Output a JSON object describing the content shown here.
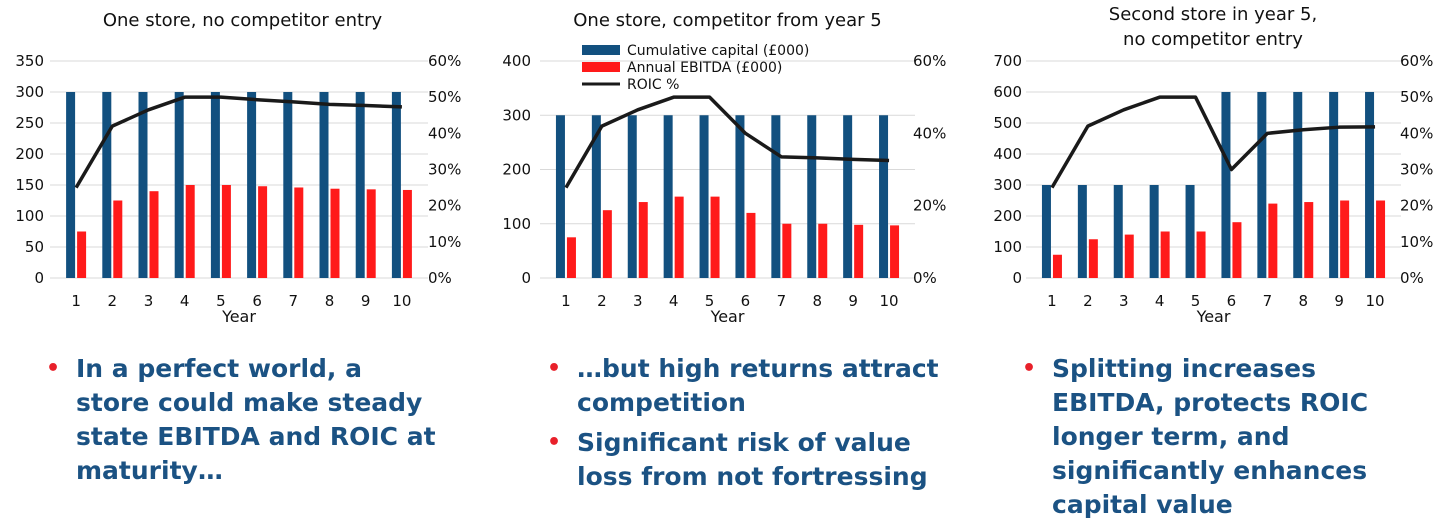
{
  "colors": {
    "capital": "#12507f",
    "ebitda": "#ff1a1a",
    "roic": "#1a1a1a",
    "grid": "#d9d9d9",
    "text_blue": "#1b5283",
    "bullet_red": "#e8202a"
  },
  "legend": {
    "capital": "Cumulative capital (£000)",
    "ebitda": "Annual EBITDA (£000)",
    "roic": "ROIC %"
  },
  "chart_data": [
    {
      "type": "bar",
      "title": [
        "One store, no competitor entry"
      ],
      "xlabel": "Year",
      "categories": [
        "1",
        "2",
        "3",
        "4",
        "5",
        "6",
        "7",
        "8",
        "9",
        "10"
      ],
      "ylim": [
        0,
        350
      ],
      "yticks": [
        "350",
        "300",
        "250",
        "200",
        "150",
        "100",
        "50",
        "0"
      ],
      "y2lim": [
        0,
        0.6
      ],
      "y2ticks": [
        "60%",
        "50%",
        "40%",
        "30%",
        "20%",
        "10%",
        "0%"
      ],
      "series": [
        {
          "name": "Cumulative capital (£000)",
          "axis": "left",
          "kind": "bar",
          "values": [
            300,
            300,
            300,
            300,
            300,
            300,
            300,
            300,
            300,
            300
          ]
        },
        {
          "name": "Annual EBITDA (£000)",
          "axis": "left",
          "kind": "bar",
          "values": [
            75,
            125,
            140,
            150,
            150,
            148,
            146,
            144,
            143,
            142
          ]
        },
        {
          "name": "ROIC %",
          "axis": "right",
          "kind": "line",
          "values": [
            0.25,
            0.42,
            0.465,
            0.5,
            0.5,
            0.493,
            0.487,
            0.48,
            0.477,
            0.473
          ]
        }
      ]
    },
    {
      "type": "bar",
      "title": [
        "One store, competitor from year 5"
      ],
      "xlabel": "Year",
      "categories": [
        "1",
        "2",
        "3",
        "4",
        "5",
        "6",
        "7",
        "8",
        "9",
        "10"
      ],
      "ylim": [
        0,
        400
      ],
      "yticks": [
        "400",
        "300",
        "200",
        "100",
        "0"
      ],
      "y2lim": [
        0,
        0.6
      ],
      "y2ticks": [
        "60%",
        "40%",
        "20%",
        "0%"
      ],
      "legend": "top-left",
      "series": [
        {
          "name": "Cumulative capital (£000)",
          "axis": "left",
          "kind": "bar",
          "values": [
            300,
            300,
            300,
            300,
            300,
            300,
            300,
            300,
            300,
            300
          ]
        },
        {
          "name": "Annual EBITDA (£000)",
          "axis": "left",
          "kind": "bar",
          "values": [
            75,
            125,
            140,
            150,
            150,
            120,
            100,
            100,
            98,
            97
          ]
        },
        {
          "name": "ROIC %",
          "axis": "right",
          "kind": "line",
          "values": [
            0.25,
            0.42,
            0.465,
            0.5,
            0.5,
            0.4,
            0.335,
            0.332,
            0.328,
            0.325
          ]
        }
      ]
    },
    {
      "type": "bar",
      "title": [
        "Second store in year 5,",
        "no competitor entry"
      ],
      "xlabel": "Year",
      "categories": [
        "1",
        "2",
        "3",
        "4",
        "5",
        "6",
        "7",
        "8",
        "9",
        "10"
      ],
      "ylim": [
        0,
        700
      ],
      "yticks": [
        "700",
        "600",
        "500",
        "400",
        "300",
        "200",
        "100",
        "0"
      ],
      "y2lim": [
        0,
        0.6
      ],
      "y2ticks": [
        "60%",
        "50%",
        "40%",
        "30%",
        "20%",
        "10%",
        "0%"
      ],
      "series": [
        {
          "name": "Cumulative capital (£000)",
          "axis": "left",
          "kind": "bar",
          "values": [
            300,
            300,
            300,
            300,
            300,
            600,
            600,
            600,
            600,
            600
          ]
        },
        {
          "name": "Annual EBITDA (£000)",
          "axis": "left",
          "kind": "bar",
          "values": [
            75,
            125,
            140,
            150,
            150,
            180,
            240,
            245,
            250,
            250
          ]
        },
        {
          "name": "ROIC %",
          "axis": "right",
          "kind": "line",
          "values": [
            0.25,
            0.42,
            0.465,
            0.5,
            0.5,
            0.3,
            0.4,
            0.41,
            0.417,
            0.418
          ]
        }
      ]
    }
  ],
  "bullets": [
    {
      "items": [
        "In a perfect world, a store could make steady state EBITDA and ROIC at maturity…"
      ]
    },
    {
      "items": [
        "…but high returns attract competition",
        "Significant risk of value loss from not fortressing"
      ]
    },
    {
      "items": [
        "Splitting increases EBITDA, protects ROIC longer term, and significantly enhances capital value"
      ]
    }
  ]
}
